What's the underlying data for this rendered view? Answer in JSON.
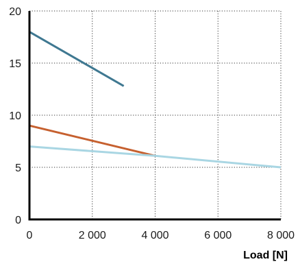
{
  "chart_data": {
    "type": "line",
    "title": "",
    "xlabel": "Load [N]",
    "ylabel": "",
    "xlim": [
      0,
      8000
    ],
    "ylim": [
      0,
      20
    ],
    "x_ticks": [
      0,
      2000,
      4000,
      6000,
      8000
    ],
    "x_tick_labels": [
      "0",
      "2 000",
      "4 000",
      "6 000",
      "8 000"
    ],
    "y_ticks": [
      0,
      5,
      10,
      15,
      20
    ],
    "y_tick_labels": [
      "0",
      "5",
      "10",
      "15",
      "20"
    ],
    "grid": true,
    "legend": "none",
    "series": [
      {
        "color": "#3f7891",
        "points": [
          [
            0,
            18
          ],
          [
            3000,
            12.8
          ]
        ]
      },
      {
        "color": "#c6602f",
        "points": [
          [
            0,
            9
          ],
          [
            4000,
            6.1
          ]
        ]
      },
      {
        "color": "#a9d6e3",
        "points": [
          [
            0,
            7
          ],
          [
            4000,
            6.1
          ],
          [
            8000,
            5
          ]
        ]
      }
    ]
  }
}
